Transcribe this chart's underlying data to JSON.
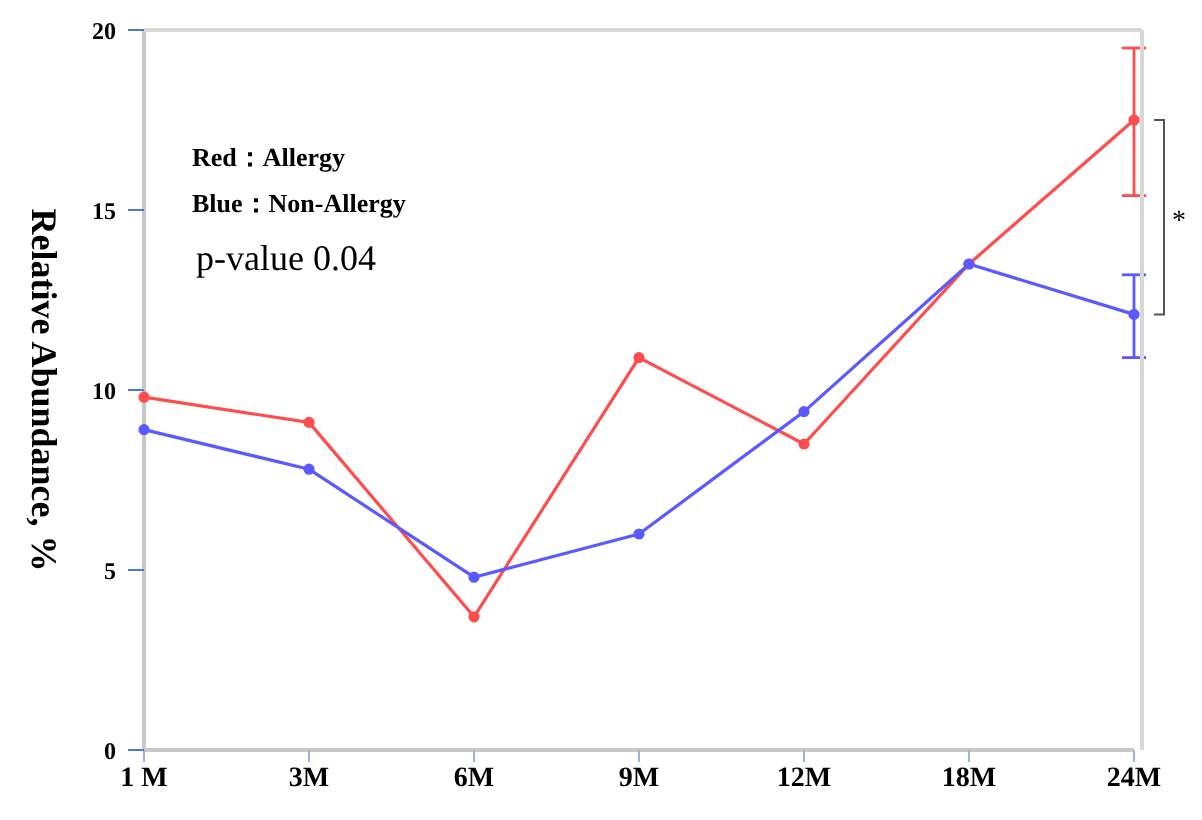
{
  "chart_data": {
    "type": "line",
    "ylabel": "Relative Abundance, %",
    "categories": [
      "1 M",
      "3M",
      "6M",
      "9M",
      "12M",
      "18M",
      "24M"
    ],
    "series": [
      {
        "color": "#ff4d4d",
        "values": [
          9.8,
          9.1,
          3.7,
          10.9,
          8.5,
          13.5,
          17.5
        ],
        "errors": [
          null,
          null,
          null,
          null,
          null,
          null,
          [
            15.4,
            19.5
          ]
        ]
      },
      {
        "color": "#5a5aff",
        "values": [
          8.9,
          7.8,
          4.8,
          6.0,
          9.4,
          13.5,
          12.1
        ],
        "errors": [
          null,
          null,
          null,
          null,
          null,
          null,
          [
            10.9,
            13.2
          ]
        ]
      }
    ],
    "ylim": [
      0,
      20
    ],
    "yticks": [
      0,
      5,
      10,
      15,
      20
    ],
    "grid": false,
    "legend": false,
    "marker": "circle",
    "line_style": "solid",
    "annotations": [
      "Red：Allergy",
      "Blue：Non-Allergy",
      "p-value  0.04",
      "*"
    ]
  }
}
